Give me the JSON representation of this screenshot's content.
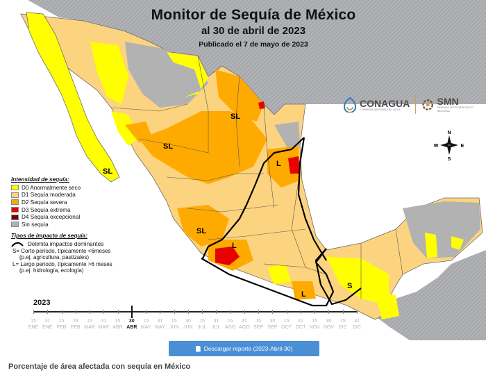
{
  "header": {
    "title": "Monitor de Sequía de México",
    "date": "al 30 de abril de 2023",
    "published": "Publicado el 7 de mayo de 2023"
  },
  "logos": {
    "conagua": "CONAGUA",
    "conagua_sub": "COMISIÓN NACIONAL DEL AGUA",
    "smn": "SMN",
    "smn_sub": "SERVICIO METEOROLÓGICO NACIONAL"
  },
  "compass": {
    "n": "N",
    "s": "S",
    "e": "E",
    "w": "W"
  },
  "colors": {
    "d0": "#ffff00",
    "d1": "#fcd37f",
    "d2": "#ffaa00",
    "d3": "#e60000",
    "d4": "#730000",
    "none": "#b2b2b2",
    "sea": "#9fa2a6",
    "impact_line": "#000000",
    "button": "#4a8fd6"
  },
  "legend": {
    "heading": "Intensidad de sequía:",
    "items": [
      {
        "label": "D0 Anormalmente seco",
        "color": "#ffff00"
      },
      {
        "label": "D1 Sequía moderada",
        "color": "#fcd37f"
      },
      {
        "label": "D2 Sequía severa",
        "color": "#ffaa00"
      },
      {
        "label": "D3 Sequía extrema",
        "color": "#e60000"
      },
      {
        "label": "D4 Sequía excepcional",
        "color": "#730000"
      },
      {
        "label": "Sin sequía",
        "color": "#b2b2b2"
      }
    ],
    "impact_heading": "Tipos de impacto de sequía:",
    "impact_line_label": "Delimita impactos dominantes",
    "short_label": "S= Corto periodo, típicamente <6meses",
    "short_example": "(p.ej. agricultura, pastizales)",
    "long_label": "L= Largo periodo, típicamente >6 meses",
    "long_example": "(p.ej. hidrología, ecología)"
  },
  "map_labels": [
    {
      "text": "SL"
    },
    {
      "text": "SL"
    },
    {
      "text": "SL"
    },
    {
      "text": "SL"
    },
    {
      "text": "L"
    },
    {
      "text": "L"
    },
    {
      "text": "L"
    },
    {
      "text": "S"
    }
  ],
  "timeline": {
    "year": "2023",
    "current_index": 7,
    "ticks": [
      {
        "day": "15",
        "month": "ENE"
      },
      {
        "day": "31",
        "month": "ENE"
      },
      {
        "day": "15",
        "month": "FEB"
      },
      {
        "day": "28",
        "month": "FEB"
      },
      {
        "day": "15",
        "month": "MAR"
      },
      {
        "day": "31",
        "month": "MAR"
      },
      {
        "day": "15",
        "month": "ABR"
      },
      {
        "day": "30",
        "month": "ABR"
      },
      {
        "day": "15",
        "month": "MAY"
      },
      {
        "day": "31",
        "month": "MAY"
      },
      {
        "day": "15",
        "month": "JUN"
      },
      {
        "day": "30",
        "month": "JUN"
      },
      {
        "day": "15",
        "month": "JUL"
      },
      {
        "day": "31",
        "month": "JUL"
      },
      {
        "day": "15",
        "month": "AGO"
      },
      {
        "day": "31",
        "month": "AGO"
      },
      {
        "day": "15",
        "month": "SEP"
      },
      {
        "day": "30",
        "month": "SEP"
      },
      {
        "day": "15",
        "month": "OCT"
      },
      {
        "day": "31",
        "month": "OCT"
      },
      {
        "day": "15",
        "month": "NOV"
      },
      {
        "day": "30",
        "month": "NOV"
      },
      {
        "day": "15",
        "month": "DIC"
      },
      {
        "day": "31",
        "month": "DIC"
      }
    ]
  },
  "download": {
    "label": "Descargar reporte (2023-Abril-30)"
  },
  "bottom": {
    "heading": "Porcentaje de área afectada con sequía en México"
  }
}
